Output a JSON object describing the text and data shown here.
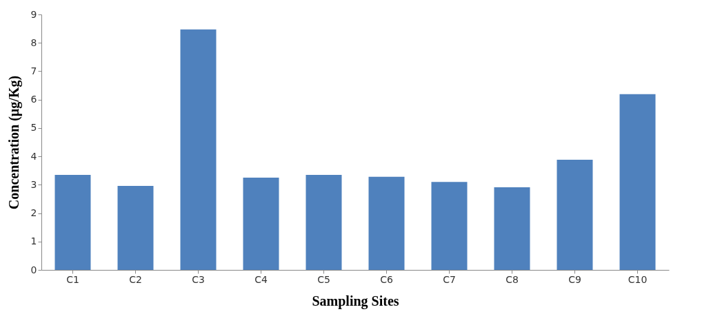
{
  "chart_data": {
    "type": "bar",
    "xlabel": "Sampling Sites",
    "ylabel": "Concentration (µg/Kg)",
    "categories": [
      "C1",
      "C2",
      "C3",
      "C4",
      "C5",
      "C6",
      "C7",
      "C8",
      "C9",
      "C10"
    ],
    "values": [
      3.35,
      2.96,
      8.47,
      3.25,
      3.35,
      3.28,
      3.1,
      2.91,
      3.88,
      6.19
    ],
    "color": "#4f81bd",
    "ylim": [
      0,
      9
    ],
    "yticks": [
      0,
      1,
      2,
      3,
      4,
      5,
      6,
      7,
      8,
      9
    ],
    "grid": false
  }
}
